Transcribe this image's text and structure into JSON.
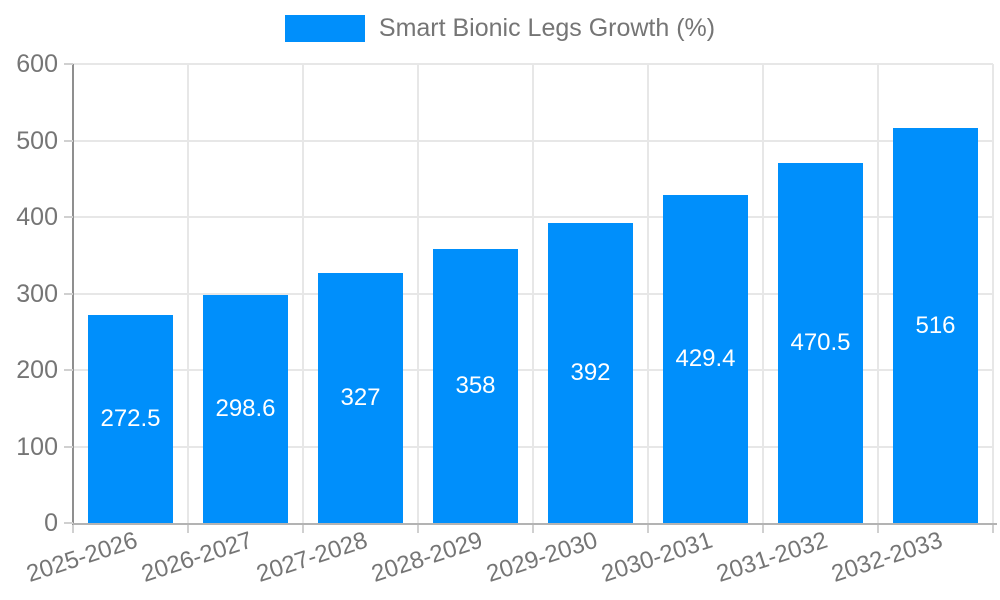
{
  "legend": {
    "label": "Smart Bionic Legs Growth (%)"
  },
  "chart_data": {
    "type": "bar",
    "title": "",
    "xlabel": "",
    "ylabel": "",
    "categories": [
      "2025-2026",
      "2026-2027",
      "2027-2028",
      "2028-2029",
      "2029-2030",
      "2030-2031",
      "2031-2032",
      "2032-2033"
    ],
    "series": [
      {
        "name": "Smart Bionic Legs Growth (%)",
        "values": [
          272.5,
          298.6,
          327,
          358,
          392,
          429.4,
          470.5,
          516
        ]
      }
    ],
    "value_labels": [
      "272.5",
      "298.6",
      "327",
      "358",
      "392",
      "429.4",
      "470.5",
      "516"
    ],
    "ylim": [
      0,
      600
    ],
    "yticks": [
      0,
      100,
      200,
      300,
      400,
      500,
      600
    ],
    "grid": true,
    "legend_position": "top",
    "colors": {
      "bar": "#008FFB",
      "axis_text": "#757575",
      "grid": "#e7e7e7",
      "axis_line_y": "#8f8f8f",
      "axis_line_x": "#b3b3b3",
      "tick": "#d0d0d0",
      "value_label": "#ffffff",
      "legend_text": "#757575"
    }
  }
}
